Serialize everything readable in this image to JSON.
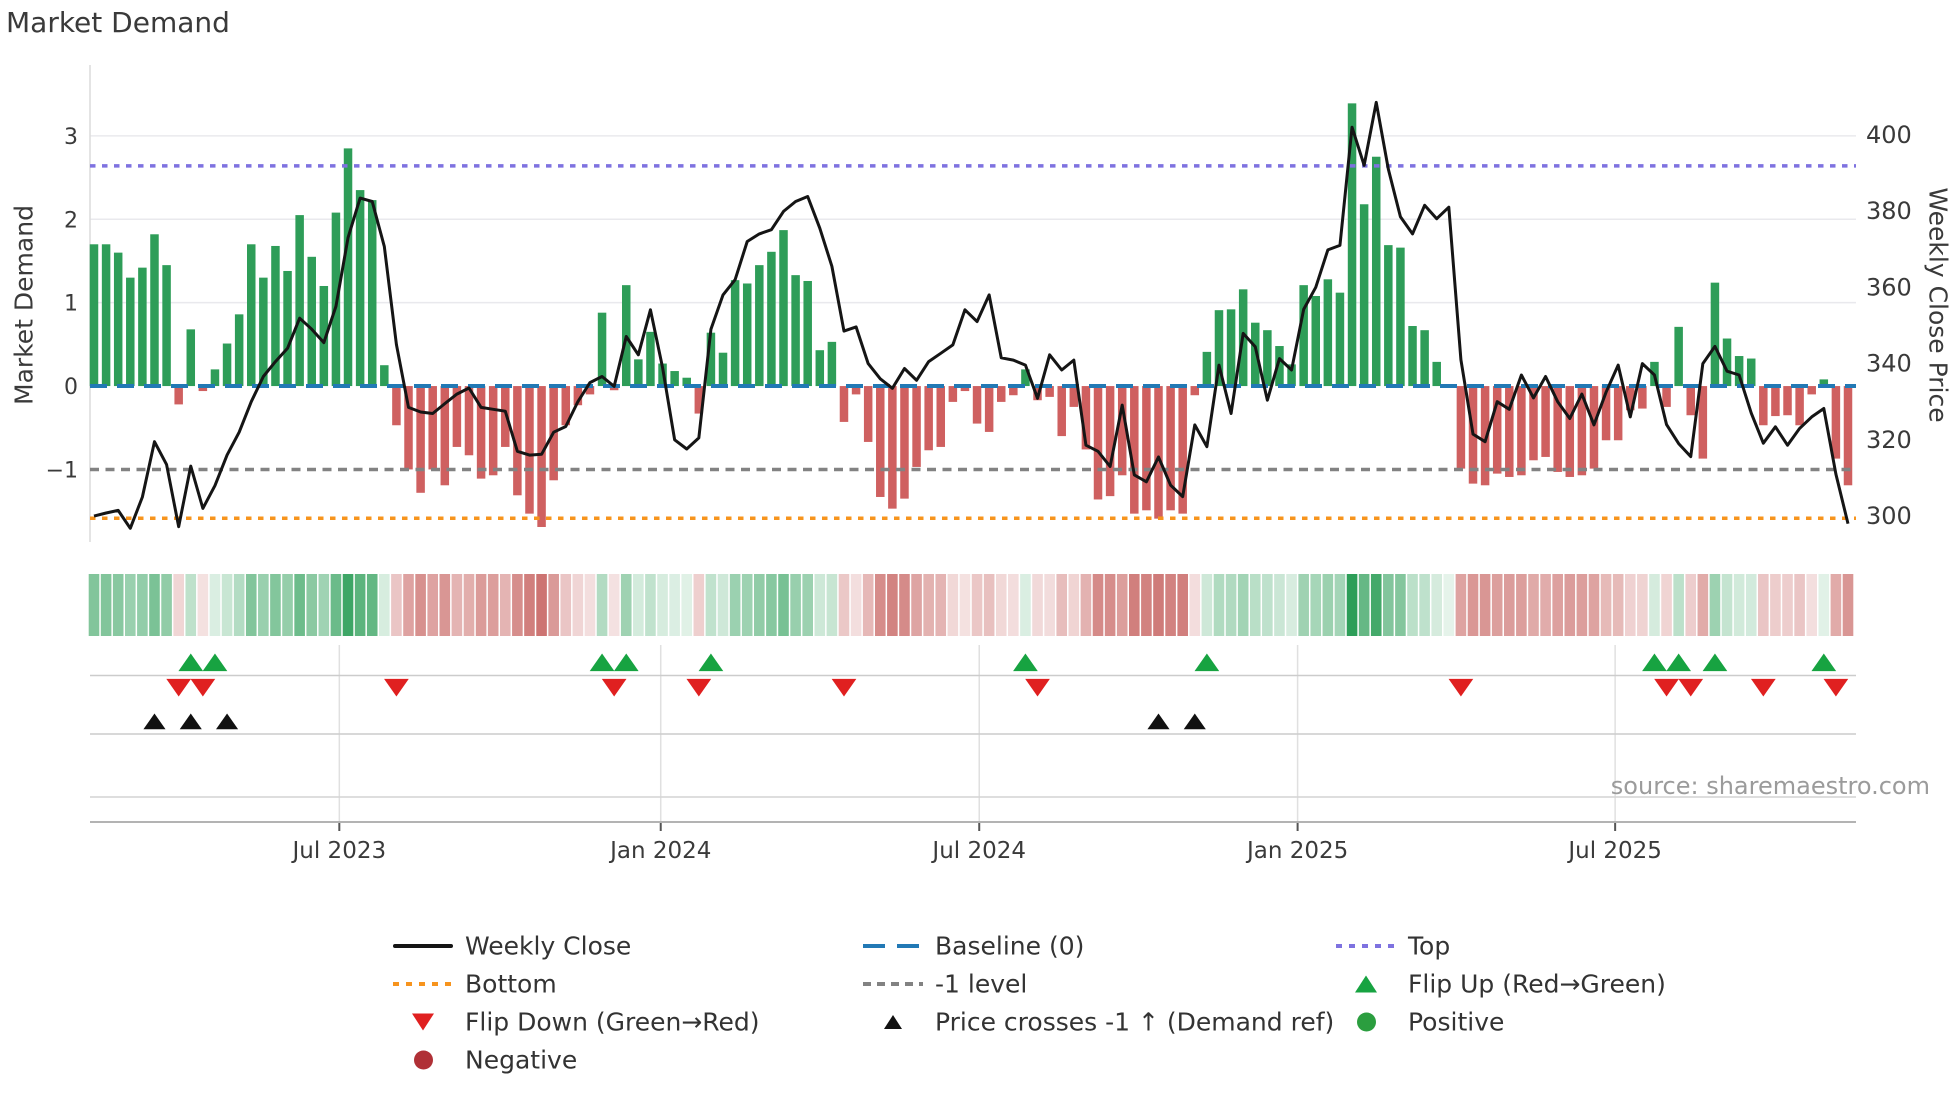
{
  "title": "Market Demand",
  "source": "source: sharemaestro.com",
  "axes": {
    "left_label": "Market Demand",
    "right_label": "Weekly Close Price",
    "left_ticks": [
      3,
      2,
      1,
      0,
      -1
    ],
    "right_ticks": [
      400,
      380,
      360,
      340,
      320,
      300
    ],
    "x_ticks": [
      {
        "label": "Jul 2023",
        "week": 20.28
      },
      {
        "label": "Jan 2024",
        "week": 46.85
      },
      {
        "label": "Jul 2024",
        "week": 73.18
      },
      {
        "label": "Jan 2025",
        "week": 99.5
      },
      {
        "label": "Jul 2025",
        "week": 125.75
      }
    ]
  },
  "colors": {
    "bar_positive": "#2e9d58",
    "bar_negative": "#cf6060",
    "price_line": "#151515",
    "baseline": "#2279b5",
    "top_level": "#7e72e0",
    "bottom_level": "#f7941d",
    "minus1_level": "#828282",
    "grid": "#e9e9ed",
    "separator": "#cccccc",
    "axis_line": "#b3b3b3",
    "flip_up": "#17a341",
    "flip_down": "#e02020",
    "price_cross": "#111111",
    "positive_dot": "#2b9e3f",
    "negative_dot": "#b03036"
  },
  "legend": {
    "items": [
      {
        "label": "Weekly Close",
        "swatch": "line",
        "color": "#151515",
        "row": 0,
        "col": 0
      },
      {
        "label": "Baseline (0)",
        "swatch": "dash-long",
        "color": "#2279b5",
        "row": 0,
        "col": 1
      },
      {
        "label": "Top",
        "swatch": "dots",
        "color": "#7e72e0",
        "row": 0,
        "col": 2
      },
      {
        "label": "Bottom",
        "swatch": "dots",
        "color": "#f7941d",
        "row": 1,
        "col": 0
      },
      {
        "label": "-1 level",
        "swatch": "dash-short",
        "color": "#828282",
        "row": 1,
        "col": 1
      },
      {
        "label": "Flip Up (Red→Green)",
        "swatch": "triangle-up",
        "color": "#17a341",
        "row": 1,
        "col": 2
      },
      {
        "label": "Flip Down (Green→Red)",
        "swatch": "triangle-down",
        "color": "#e02020",
        "row": 2,
        "col": 0
      },
      {
        "label": "Price crosses -1 ↑ (Demand ref)",
        "swatch": "triangle-sm",
        "color": "#111111",
        "row": 2,
        "col": 1
      },
      {
        "label": "Positive",
        "swatch": "circle",
        "color": "#2b9e3f",
        "row": 2,
        "col": 2
      },
      {
        "label": "Negative",
        "swatch": "circle",
        "color": "#b03036",
        "row": 3,
        "col": 0
      }
    ]
  },
  "chart_data": {
    "type": "combo",
    "weeks": 146,
    "x_range_note": "weekly data, ~Feb 2023 to ~Nov 2025",
    "ylim_left": [
      -1.87,
      3.85
    ],
    "ylim_right": [
      293.2,
      418.3
    ],
    "levels": {
      "baseline": 0,
      "top": 2.64,
      "bottom": -1.585,
      "minus1": -1
    },
    "series": [
      {
        "name": "Market Demand",
        "type": "bar",
        "axis": "left",
        "values": [
          1.7,
          1.7,
          1.6,
          1.3,
          1.42,
          1.82,
          1.45,
          -0.22,
          0.68,
          -0.06,
          0.2,
          0.51,
          0.86,
          1.7,
          1.3,
          1.68,
          1.38,
          2.05,
          1.55,
          1.2,
          2.08,
          2.85,
          2.35,
          2.23,
          0.25,
          -0.47,
          -1.0,
          -1.28,
          -1.0,
          -1.19,
          -0.73,
          -0.83,
          -1.11,
          -1.07,
          -0.73,
          -1.31,
          -1.53,
          -1.69,
          -1.13,
          -0.47,
          -0.23,
          -0.1,
          0.88,
          -0.05,
          1.21,
          0.32,
          0.65,
          0.27,
          0.18,
          0.1,
          -0.33,
          0.64,
          0.4,
          1.27,
          1.23,
          1.45,
          1.61,
          1.87,
          1.33,
          1.26,
          0.43,
          0.53,
          -0.43,
          -0.1,
          -0.67,
          -1.33,
          -1.47,
          -1.35,
          -0.97,
          -0.77,
          -0.73,
          -0.19,
          -0.06,
          -0.45,
          -0.55,
          -0.19,
          -0.11,
          0.2,
          -0.17,
          -0.13,
          -0.6,
          -0.25,
          -0.76,
          -1.36,
          -1.32,
          -1.07,
          -1.53,
          -1.49,
          -1.59,
          -1.49,
          -1.53,
          -0.11,
          0.41,
          0.91,
          0.92,
          1.16,
          0.76,
          0.67,
          0.48,
          0.26,
          1.21,
          1.08,
          1.28,
          1.12,
          3.39,
          2.18,
          2.75,
          1.69,
          1.66,
          0.72,
          0.67,
          0.29,
          0.02,
          -0.99,
          -1.17,
          -1.19,
          -1.05,
          -1.09,
          -1.07,
          -0.89,
          -0.85,
          -1.03,
          -1.09,
          -1.07,
          -0.99,
          -0.65,
          -0.65,
          -0.29,
          -0.27,
          0.29,
          -0.25,
          0.71,
          -0.35,
          -0.87,
          1.24,
          0.57,
          0.36,
          0.33,
          -0.47,
          -0.36,
          -0.35,
          -0.47,
          -0.1,
          0.08,
          -0.87,
          -1.19
        ]
      },
      {
        "name": "Weekly Close",
        "type": "line",
        "axis": "right",
        "values": [
          300,
          300.8,
          301.5,
          296.8,
          305,
          319.5,
          313.5,
          297.2,
          313.1,
          302,
          308,
          316,
          322,
          330,
          336.6,
          340.5,
          344,
          351.9,
          349,
          345.5,
          355,
          373,
          383.4,
          382.5,
          370.7,
          345,
          328.5,
          327.3,
          326.9,
          329.5,
          332,
          333.6,
          328.5,
          328,
          327.5,
          317,
          316,
          316.2,
          322,
          323.5,
          330,
          335,
          336.6,
          334,
          347.1,
          342.3,
          354.1,
          339,
          320,
          317.6,
          320.5,
          349,
          358,
          362,
          372,
          374,
          375.1,
          379.9,
          382.5,
          383.8,
          375.5,
          365.5,
          348.5,
          349.6,
          340,
          336,
          333.5,
          338.7,
          335.6,
          340.5,
          342.7,
          344.9,
          354.1,
          351,
          358,
          341.5,
          340.9,
          339.6,
          330.9,
          342.3,
          338.3,
          340.9,
          318.6,
          317,
          313,
          329.1,
          310.8,
          309,
          315.5,
          308.1,
          305.1,
          323.9,
          318.2,
          339.6,
          326.9,
          347.9,
          344.4,
          330.4,
          341.3,
          338.3,
          354.2,
          360,
          369.8,
          371,
          402,
          392,
          408.5,
          391,
          378.5,
          374,
          381.5,
          378,
          381,
          341,
          321.5,
          319.5,
          330,
          328,
          337,
          331,
          336.6,
          330,
          325.6,
          332,
          323.9,
          332.5,
          339.6,
          326,
          340,
          337,
          324,
          319,
          315.6,
          340,
          344.5,
          338,
          337,
          327,
          319.1,
          323.4,
          318.6,
          323,
          326,
          328.2,
          311,
          298
        ]
      }
    ],
    "heatmap": {
      "note": "strip colored by demand sign/intensity per week"
    },
    "markers": {
      "flip_up_weeks": [
        8,
        10,
        42,
        44,
        51,
        77,
        92,
        129,
        131,
        134,
        143
      ],
      "flip_down_weeks": [
        7,
        9,
        25,
        43,
        50,
        62,
        78,
        113,
        130,
        132,
        138,
        144
      ],
      "price_cross_weeks": [
        5,
        8,
        11,
        88,
        91
      ]
    }
  }
}
